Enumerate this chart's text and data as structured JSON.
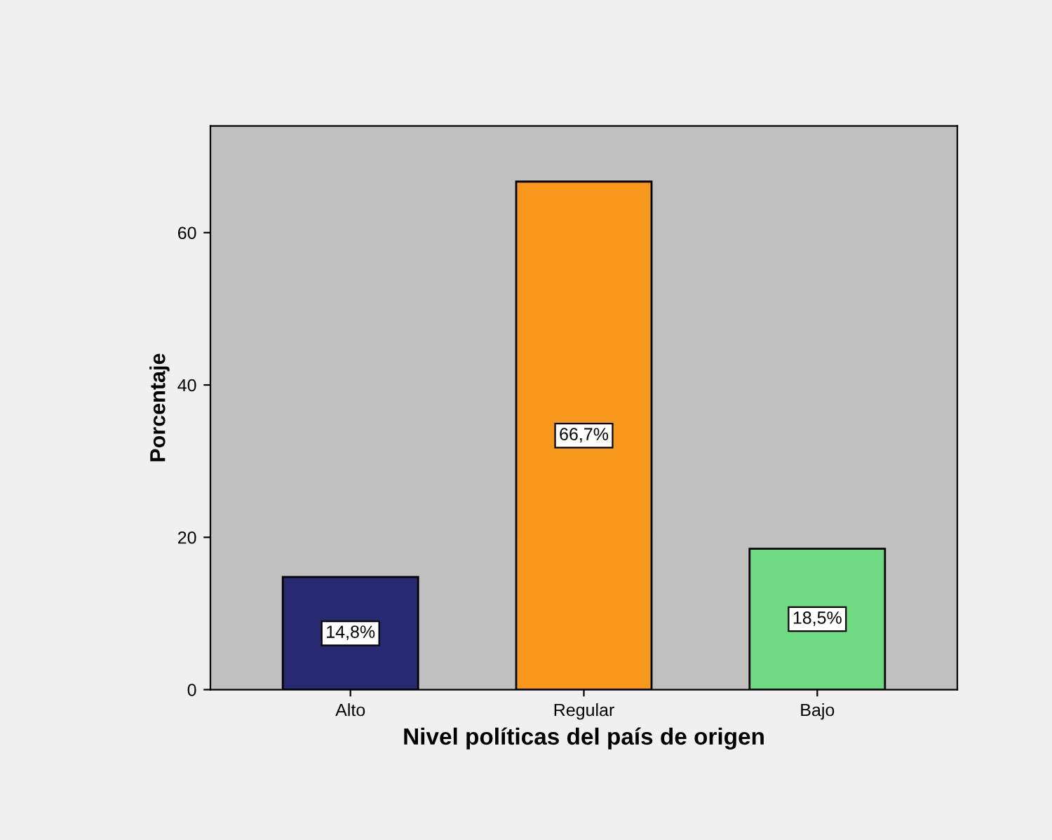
{
  "chart_data": {
    "type": "bar",
    "xlabel": "Nivel políticas del país de origen",
    "ylabel": "Porcentaje",
    "categories": [
      "Alto",
      "Regular",
      "Bajo"
    ],
    "values": [
      14.8,
      66.7,
      18.5
    ],
    "colors": [
      "#272a70",
      "#f7981d",
      "#6edb82"
    ],
    "value_labels": [
      "14,8%",
      "66,7%",
      "18,5%"
    ],
    "ylim": [
      0,
      74
    ],
    "yticks": [
      0,
      20,
      40,
      60
    ],
    "grid": false,
    "legend": false
  }
}
